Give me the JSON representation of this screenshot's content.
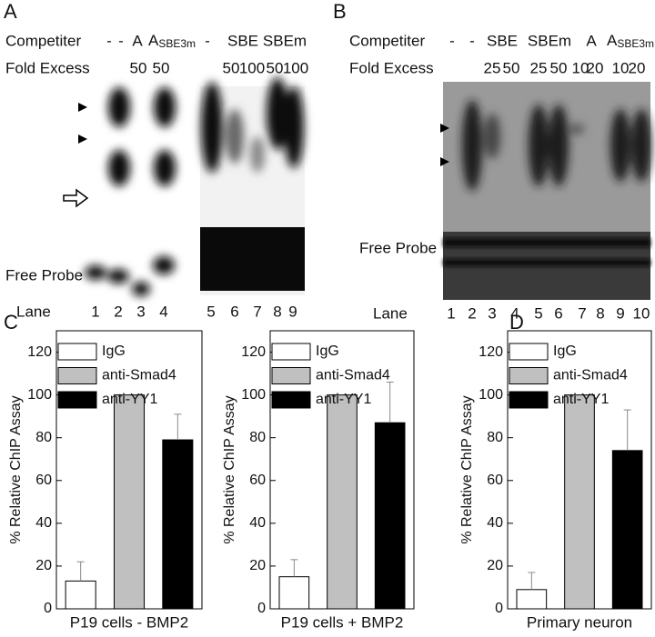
{
  "gels": {
    "A": {
      "panel_label": "A",
      "competitor_label": "Competiter",
      "fold_label": "Fold Excess",
      "competitors": [
        "-",
        "-",
        "A",
        "A",
        "-",
        "SBE",
        "SBEm"
      ],
      "subscript": "SBE3m",
      "fold": [
        "50",
        "50",
        "50",
        "100",
        "50",
        "100"
      ],
      "free_probe": "Free Probe",
      "lane_label": "Lane",
      "lanes": [
        "1",
        "2",
        "3",
        "4",
        "5",
        "6",
        "7",
        "8",
        "9"
      ]
    },
    "B": {
      "panel_label": "B",
      "competitor_label": "Competiter",
      "fold_label": "Fold Excess",
      "competitors": [
        "-",
        "-",
        "SBE",
        "SBEm",
        "A",
        "A"
      ],
      "subscript": "SBE3m",
      "fold": [
        "25",
        "50",
        "25",
        "50",
        "10",
        "20",
        "10",
        "20"
      ],
      "free_probe": "Free Probe",
      "lane_label": "Lane",
      "lanes": [
        "1",
        "2",
        "3",
        "4",
        "5",
        "6",
        "7",
        "8",
        "9",
        "10"
      ]
    }
  },
  "chart_data": [
    {
      "type": "bar",
      "panel_label": "C",
      "ylabel": "% Relative ChIP Assay",
      "xlabel": "P19 cells - BMP2",
      "ylim": [
        0,
        130
      ],
      "yticks": [
        0,
        20,
        40,
        60,
        80,
        100,
        120
      ],
      "series": [
        {
          "name": "IgG",
          "color": "#ffffff",
          "values": [
            13
          ],
          "errors": [
            9
          ]
        },
        {
          "name": "anti-Smad4",
          "color": "#c0c0c0",
          "values": [
            100
          ],
          "errors": [
            null
          ]
        },
        {
          "name": "anti-YY1",
          "color": "#000000",
          "values": [
            79
          ],
          "errors": [
            12
          ]
        }
      ]
    },
    {
      "type": "bar",
      "ylabel": "% Relative ChIP Assay",
      "xlabel": "P19 cells + BMP2",
      "ylim": [
        0,
        130
      ],
      "yticks": [
        0,
        20,
        40,
        60,
        80,
        100,
        120
      ],
      "series": [
        {
          "name": "IgG",
          "color": "#ffffff",
          "values": [
            15
          ],
          "errors": [
            8
          ]
        },
        {
          "name": "anti-Smad4",
          "color": "#c0c0c0",
          "values": [
            100
          ],
          "errors": [
            null
          ]
        },
        {
          "name": "anti-YY1",
          "color": "#000000",
          "values": [
            87
          ],
          "errors": [
            19
          ]
        }
      ]
    },
    {
      "type": "bar",
      "panel_label": "D",
      "ylabel": "% Relative ChIP Assay",
      "xlabel": "Primary neuron",
      "ylim": [
        0,
        130
      ],
      "yticks": [
        0,
        20,
        40,
        60,
        80,
        100,
        120
      ],
      "series": [
        {
          "name": "IgG",
          "color": "#ffffff",
          "values": [
            9
          ],
          "errors": [
            8
          ]
        },
        {
          "name": "anti-Smad4",
          "color": "#c0c0c0",
          "values": [
            100
          ],
          "errors": [
            null
          ]
        },
        {
          "name": "anti-YY1",
          "color": "#000000",
          "values": [
            74
          ],
          "errors": [
            19
          ]
        }
      ]
    }
  ]
}
